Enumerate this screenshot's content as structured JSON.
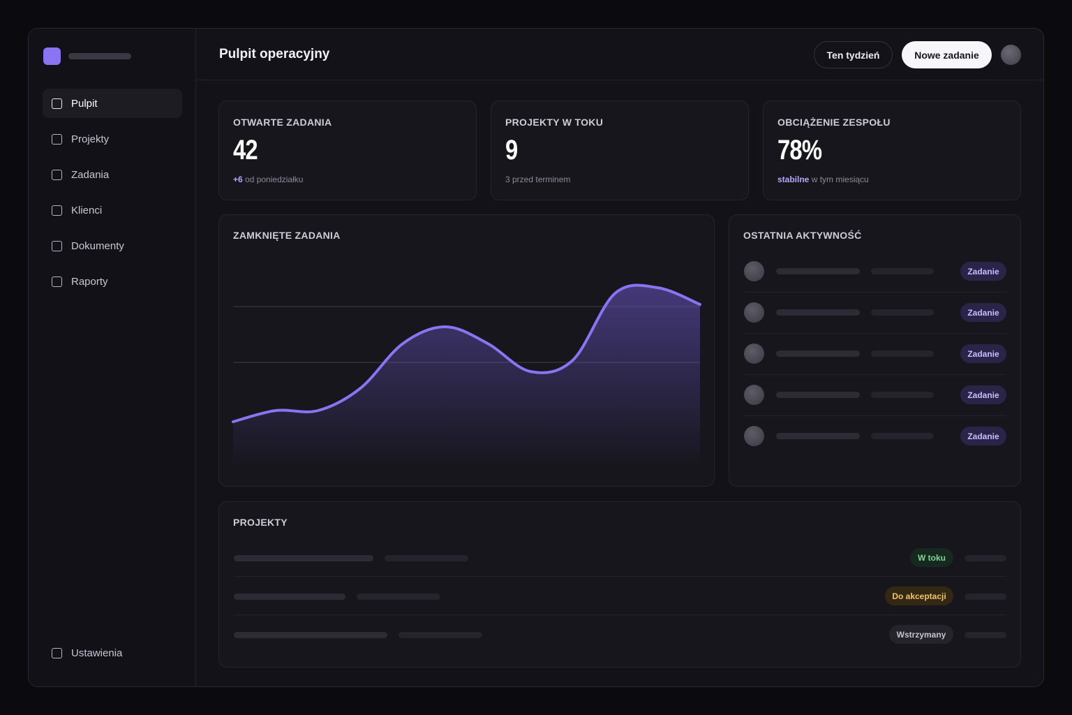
{
  "header": {
    "title": "Pulpit operacyjny",
    "week_button": "Ten tydzień",
    "new_task_button": "Nowe zadanie"
  },
  "sidebar": {
    "items": [
      {
        "label": "Pulpit",
        "active": true
      },
      {
        "label": "Projekty",
        "active": false
      },
      {
        "label": "Zadania",
        "active": false
      },
      {
        "label": "Klienci",
        "active": false
      },
      {
        "label": "Dokumenty",
        "active": false
      },
      {
        "label": "Raporty",
        "active": false
      }
    ],
    "settings": "Ustawienia"
  },
  "kpis": [
    {
      "label": "OTWARTE ZADANIA",
      "value": "42",
      "note_strong": "+6",
      "note": "od poniedziałku"
    },
    {
      "label": "PROJEKTY W TOKU",
      "value": "9",
      "note_strong": "",
      "note": "3 przed terminem"
    },
    {
      "label": "OBCIĄŻENIE ZESPOŁU",
      "value": "78%",
      "note_strong": "stabilne",
      "note": "w tym miesiącu"
    }
  ],
  "closed_tasks": {
    "title": "ZAMKNIĘTE ZADANIA",
    "accent": "#8b74f2"
  },
  "activity": {
    "title": "OSTATNIA AKTYWNOŚĆ",
    "tags": [
      "Zadanie",
      "Zadanie",
      "Zadanie",
      "Zadanie",
      "Zadanie"
    ]
  },
  "projects": {
    "title": "PROJEKTY",
    "rows": [
      {
        "status": "W toku",
        "color": "#7fd49a",
        "bg": "#16291f"
      },
      {
        "status": "Do akceptacji",
        "color": "#f0c36a",
        "bg": "#332812"
      },
      {
        "status": "Wstrzymany",
        "color": "#c5c2cd",
        "bg": "#25232b"
      }
    ]
  },
  "chart_data": {
    "type": "area",
    "title": "ZAMKNIĘTE ZADANIA",
    "xlabel": "",
    "ylabel": "",
    "grid": true,
    "legend": "none",
    "values": [
      4,
      5,
      5,
      7,
      11,
      12.5,
      11,
      8.5,
      9.5,
      15.5,
      16,
      14.5
    ],
    "ylim": [
      0,
      20
    ]
  }
}
